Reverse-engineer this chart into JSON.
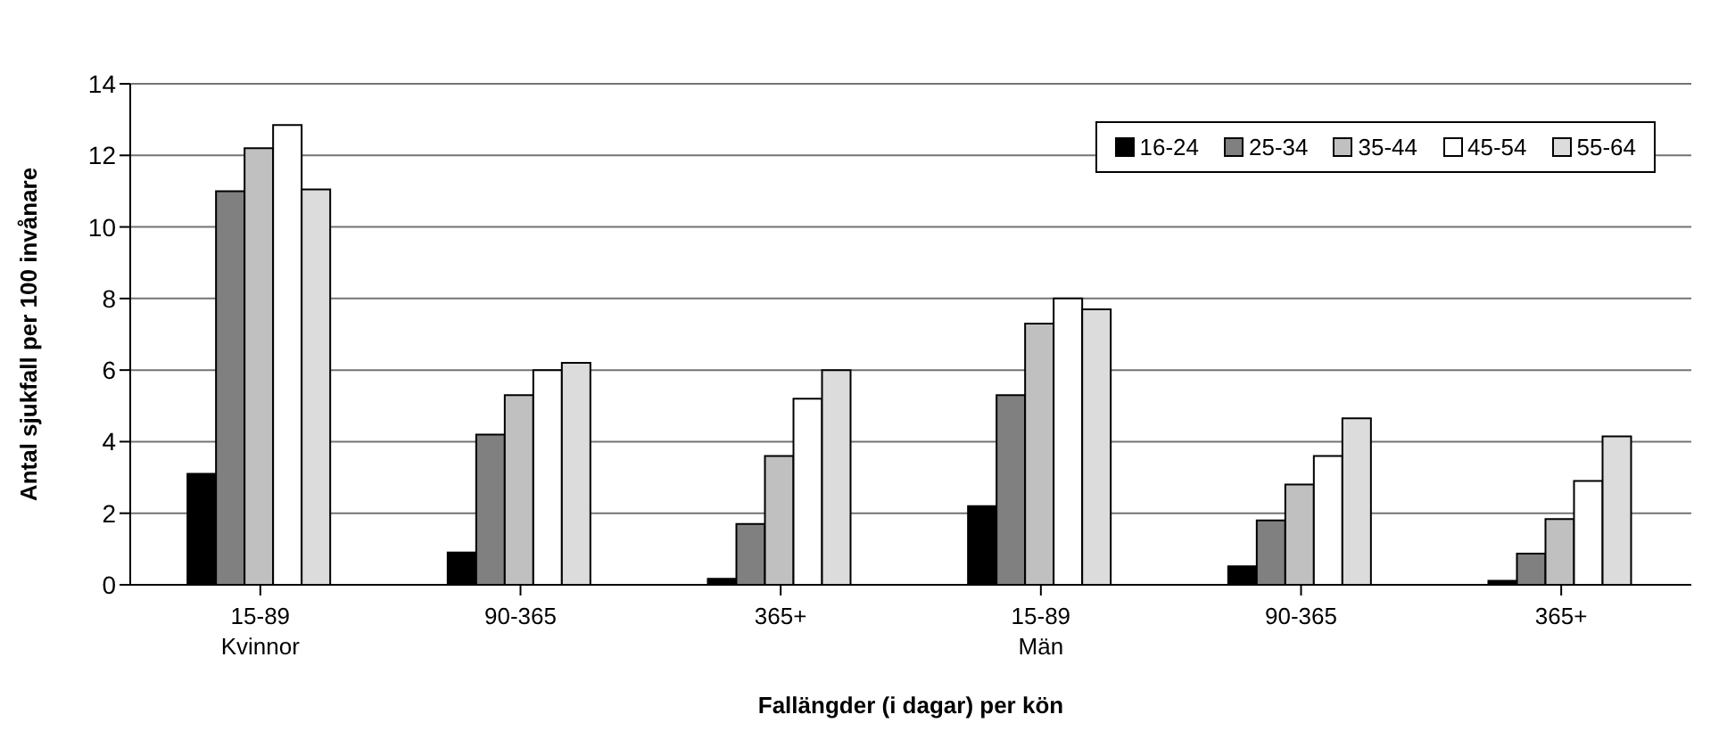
{
  "chart_data": {
    "type": "bar",
    "xlabel": "Fallängder (i dagar) per kön",
    "ylabel": "Antal sjukfall per 100 invånare",
    "categories": [
      "15-89\nKvinnor",
      "90-365",
      "365+",
      "15-89\nMän",
      "90-365",
      "365+"
    ],
    "series": [
      {
        "name": "16-24",
        "color": "#000000",
        "values": [
          3.1,
          0.9,
          0.17,
          2.2,
          0.52,
          0.11
        ]
      },
      {
        "name": "25-34",
        "color": "#808080",
        "values": [
          11.0,
          4.2,
          1.7,
          5.3,
          1.8,
          0.87
        ]
      },
      {
        "name": "35-44",
        "color": "#c0c0c0",
        "values": [
          12.2,
          5.3,
          3.6,
          7.3,
          2.8,
          1.84
        ]
      },
      {
        "name": "45-54",
        "color": "#ffffff",
        "values": [
          12.85,
          6.0,
          5.2,
          8.0,
          3.6,
          2.9
        ]
      },
      {
        "name": "55-64",
        "color": "#dcdcdc",
        "values": [
          11.05,
          6.2,
          6.0,
          7.7,
          4.65,
          4.15
        ]
      }
    ],
    "ylim": [
      0,
      14
    ],
    "yticks": [
      0,
      2,
      4,
      6,
      8,
      10,
      12,
      14
    ],
    "grid": "y",
    "legend": "top right"
  }
}
